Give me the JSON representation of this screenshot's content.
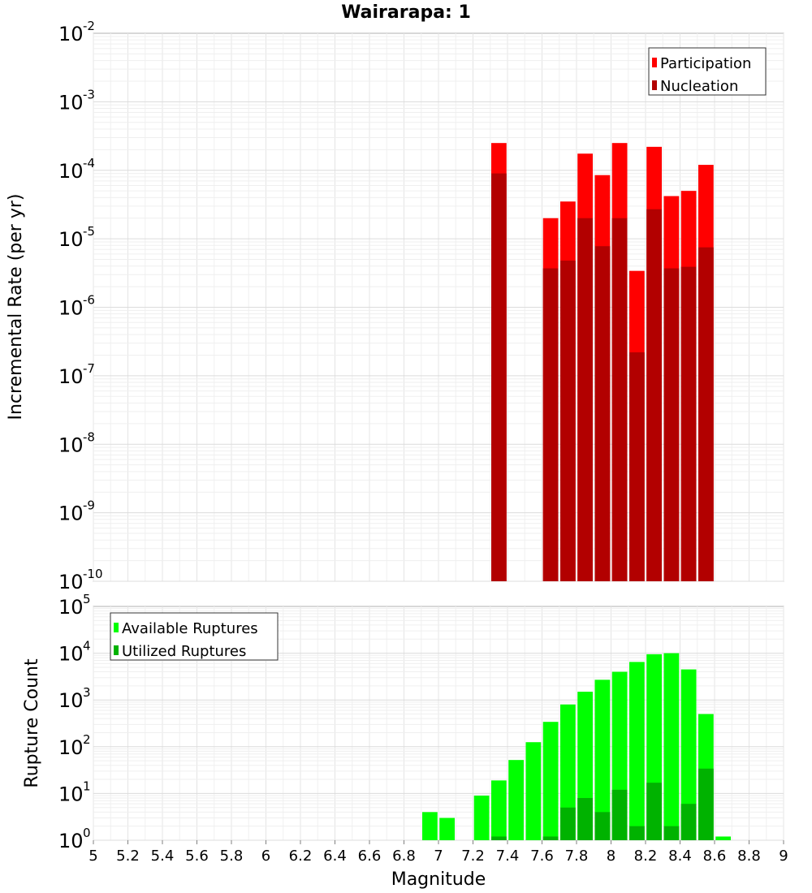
{
  "chart_data": [
    {
      "type": "bar",
      "title": "Wairarapa: 1",
      "xlabel": "Magnitude",
      "ylabel": "Incremental Rate (per yr)",
      "yscale": "log",
      "ylim": [
        1e-10,
        0.01
      ],
      "xlim": [
        5,
        9
      ],
      "grid": true,
      "legend_position": "top-right",
      "x": [
        7.35,
        7.65,
        7.75,
        7.85,
        7.95,
        8.05,
        8.15,
        8.25,
        8.35,
        8.45,
        8.55
      ],
      "series": [
        {
          "name": "Participation",
          "color": "#ff0000",
          "values": [
            0.00025,
            2e-05,
            3.5e-05,
            0.000175,
            8.5e-05,
            0.00025,
            3.4e-06,
            0.00022,
            4.2e-05,
            5e-05,
            0.00012
          ]
        },
        {
          "name": "Nucleation",
          "color": "#b20000",
          "values": [
            9e-05,
            3.7e-06,
            4.8e-06,
            2e-05,
            7.8e-06,
            2e-05,
            2.2e-07,
            2.7e-05,
            3.7e-06,
            3.9e-06,
            7.5e-06
          ]
        }
      ]
    },
    {
      "type": "bar",
      "xlabel": "Magnitude",
      "ylabel": "Rupture Count",
      "yscale": "log",
      "ylim": [
        1,
        100000.0
      ],
      "xlim": [
        5,
        9
      ],
      "grid": true,
      "legend_position": "top-left",
      "x_tick_labels": [
        "5",
        "5.2",
        "5.4",
        "5.6",
        "5.8",
        "6",
        "6.2",
        "6.4",
        "6.6",
        "6.8",
        "7",
        "7.2",
        "7.4",
        "7.6",
        "7.8",
        "8",
        "8.2",
        "8.4",
        "8.6",
        "8.8",
        "9"
      ],
      "series": [
        {
          "name": "Available Ruptures",
          "color": "#00ff00",
          "x": [
            6.95,
            7.05,
            7.25,
            7.35,
            7.45,
            7.55,
            7.65,
            7.75,
            7.85,
            7.95,
            8.05,
            8.15,
            8.25,
            8.35,
            8.45,
            8.55,
            8.65
          ],
          "values": [
            4,
            3,
            9,
            19,
            52,
            125,
            340,
            800,
            1500,
            2700,
            4000,
            6500,
            9500,
            10000,
            4500,
            500,
            1.2
          ]
        },
        {
          "name": "Utilized Ruptures",
          "color": "#00b200",
          "x": [
            7.35,
            7.65,
            7.75,
            7.85,
            7.95,
            8.05,
            8.15,
            8.25,
            8.35,
            8.45,
            8.55
          ],
          "values": [
            1.2,
            1.2,
            5,
            8,
            4,
            12,
            2,
            17,
            2,
            6,
            34
          ]
        }
      ]
    }
  ]
}
